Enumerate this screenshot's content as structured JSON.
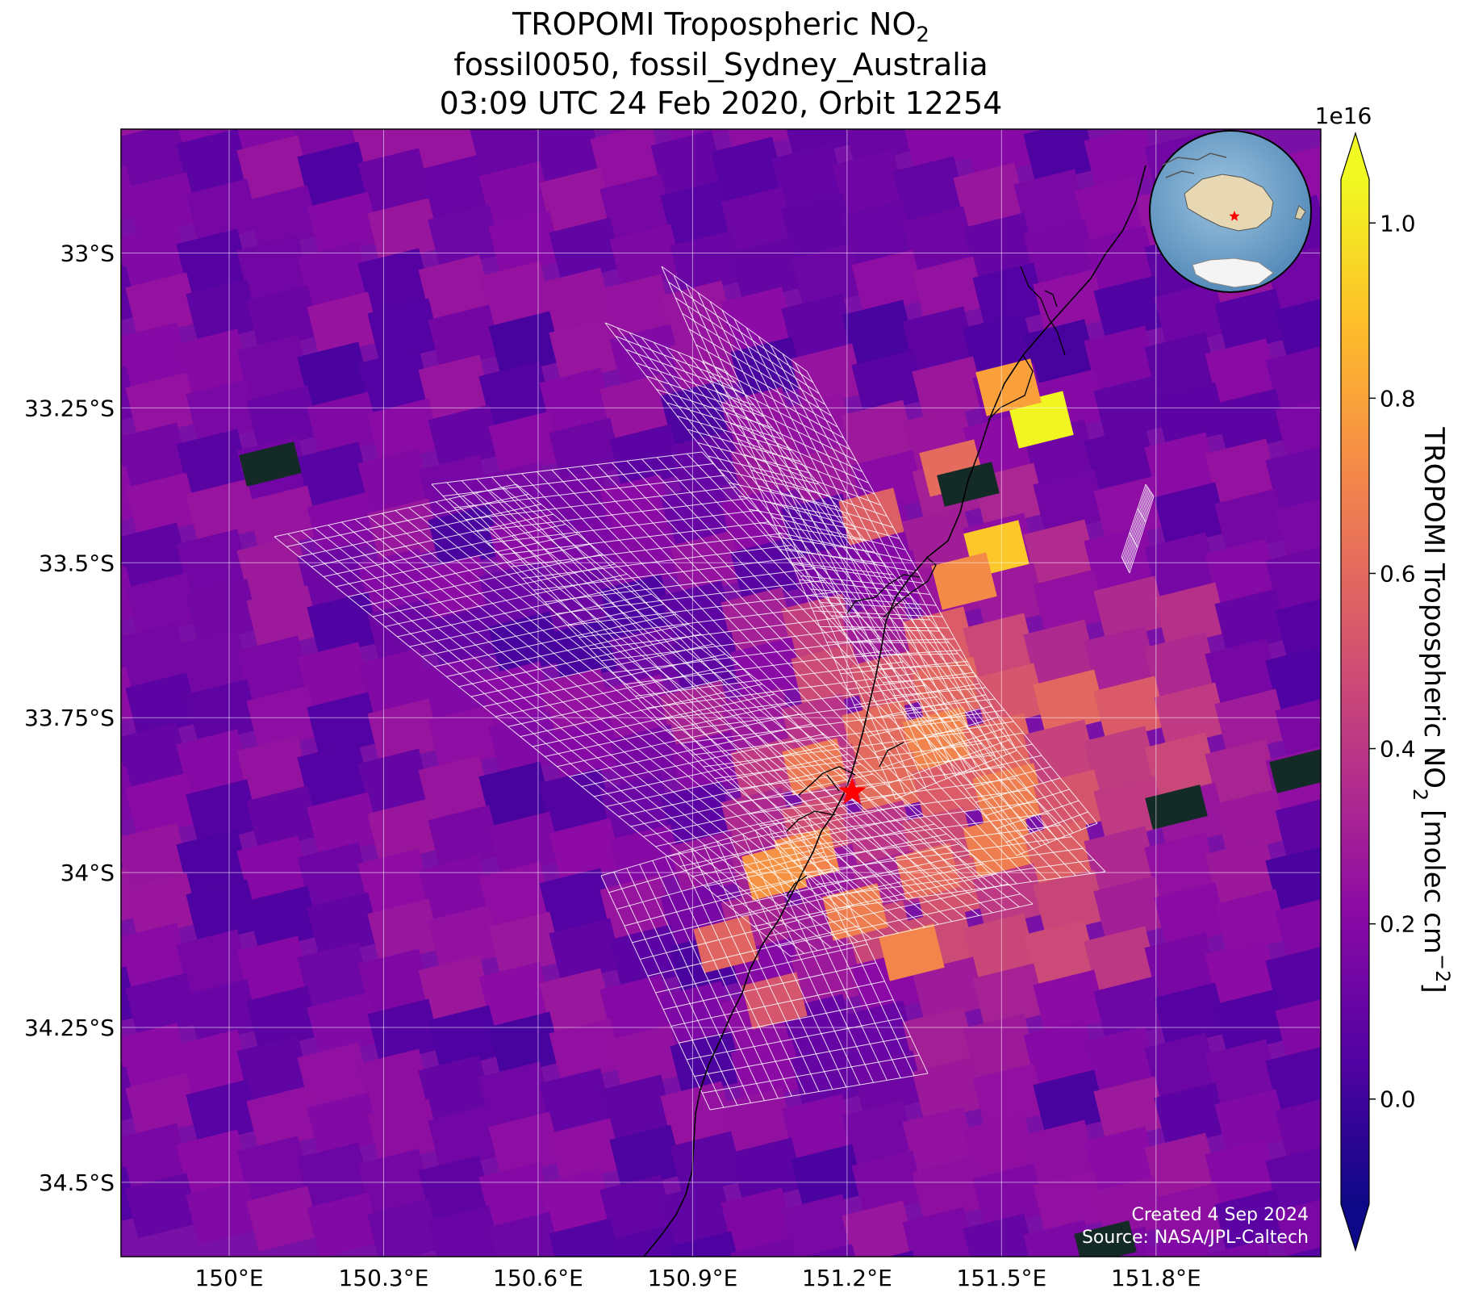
{
  "title": {
    "line1_prefix": "TROPOMI Tropospheric NO",
    "line1_sub": "2",
    "line2": "fossil0050, fossil_Sydney_Australia",
    "line3": "03:09 UTC 24 Feb 2020, Orbit 12254"
  },
  "map": {
    "lat_range": [
      -34.62,
      -32.8
    ],
    "lon_range": [
      149.79,
      152.12
    ],
    "lat_ticks": [
      {
        "value": -33.0,
        "label": "33°S"
      },
      {
        "value": -33.25,
        "label": "33.25°S"
      },
      {
        "value": -33.5,
        "label": "33.5°S"
      },
      {
        "value": -33.75,
        "label": "33.75°S"
      },
      {
        "value": -34.0,
        "label": "34°S"
      },
      {
        "value": -34.25,
        "label": "34.25°S"
      },
      {
        "value": -34.5,
        "label": "34.5°S"
      }
    ],
    "lon_ticks": [
      {
        "value": 150.0,
        "label": "150°E"
      },
      {
        "value": 150.3,
        "label": "150.3°E"
      },
      {
        "value": 150.6,
        "label": "150.6°E"
      },
      {
        "value": 150.9,
        "label": "150.9°E"
      },
      {
        "value": 151.2,
        "label": "151.2°E"
      },
      {
        "value": 151.5,
        "label": "151.5°E"
      },
      {
        "value": 151.8,
        "label": "151.8°E"
      }
    ],
    "target": {
      "name": "fossil_Sydney_Australia",
      "lon": 151.21,
      "lat": -33.87,
      "marker_color": "#ff0000"
    },
    "grid": true
  },
  "colorbar": {
    "multiplier": "1e16",
    "min": -0.12,
    "max": 1.05,
    "ticks": [
      {
        "value": 0.0,
        "label": "0.0"
      },
      {
        "value": 0.2,
        "label": "0.2"
      },
      {
        "value": 0.4,
        "label": "0.4"
      },
      {
        "value": 0.6,
        "label": "0.6"
      },
      {
        "value": 0.8,
        "label": "0.8"
      },
      {
        "value": 1.0,
        "label": "1.0"
      }
    ],
    "label_prefix": "TROPOMI Tropospheric NO",
    "label_sub": "2",
    "label_suffix": " [molec cm",
    "label_sup": "−2",
    "label_end": "]",
    "colors": [
      "#0d0887",
      "#5302a3",
      "#8b0aa5",
      "#b83289",
      "#db5c68",
      "#f48849",
      "#febd2a",
      "#f0f921"
    ]
  },
  "credits": {
    "created": "Created 4 Sep 2024",
    "source": "Source: NASA/JPL-Caltech"
  }
}
